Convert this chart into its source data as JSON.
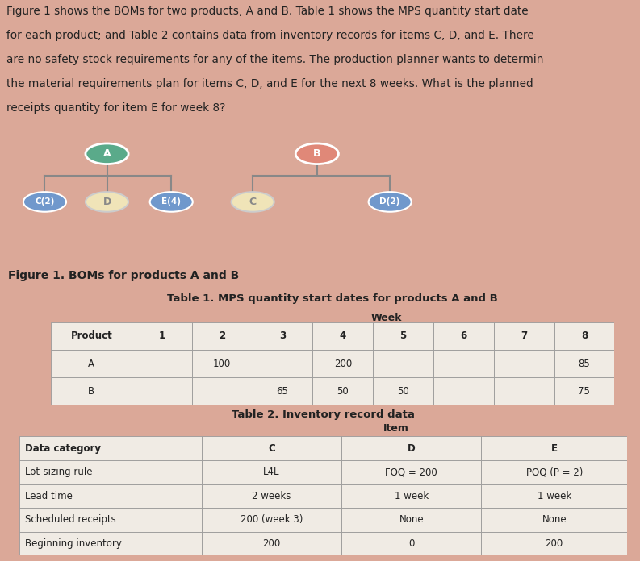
{
  "bg_color": "#dba898",
  "text_color": "#222222",
  "paragraph_lines": [
    "Figure 1 shows the BOMs for two products, A and B. Table 1 shows the MPS quantity start date",
    "for each product; and Table 2 contains data from inventory records for items C, D, and E. There",
    "are no safety stock requirements for any of the items. The production planner wants to determin",
    "the material requirements plan for items C, D, and E for the next 8 weeks. What is the planned",
    "receipts quantity for item E for week 8?"
  ],
  "fig_caption": "Figure 1. BOMs for products A and B",
  "bom_box_color": "#f0ebe4",
  "node_A_color": "#5aaa8a",
  "node_B_color": "#e08878",
  "node_C2_color": "#7098cc",
  "node_D_A_color": "#f0e4b8",
  "node_E4_color": "#7098cc",
  "node_C_B_color": "#f0e4b8",
  "node_D2_color": "#7098cc",
  "line_color": "#888888",
  "table1_title": "Table 1. MPS quantity start dates for products A and B",
  "table1_col_headers": [
    "Product",
    "1",
    "2",
    "3",
    "4",
    "5",
    "6",
    "7",
    "8"
  ],
  "table1_rows": [
    [
      "A",
      "",
      "100",
      "",
      "200",
      "",
      "",
      "",
      "85"
    ],
    [
      "B",
      "",
      "",
      "65",
      "50",
      "50",
      "",
      "",
      "75"
    ]
  ],
  "table2_title": "Table 2. Inventory record data",
  "table2_col_headers": [
    "Data category",
    "C",
    "D",
    "E"
  ],
  "table2_rows": [
    [
      "Lot-sizing rule",
      "L4L",
      "FOQ = 200",
      "POQ (P = 2)"
    ],
    [
      "Lead time",
      "2 weeks",
      "1 week",
      "1 week"
    ],
    [
      "Scheduled receipts",
      "200 (week 3)",
      "None",
      "None"
    ],
    [
      "Beginning inventory",
      "200",
      "0",
      "200"
    ]
  ],
  "table_bg": "#f0ebe4",
  "table_edge": "#999999"
}
